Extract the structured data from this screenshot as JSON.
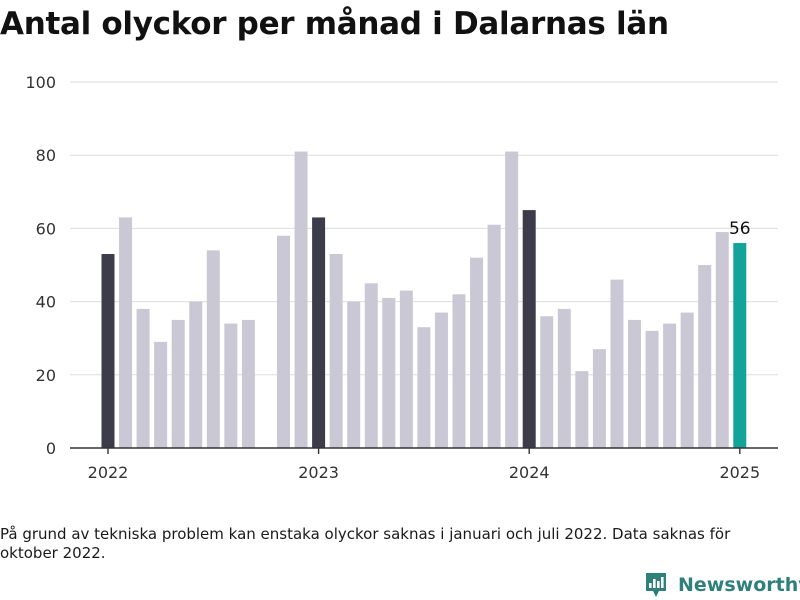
{
  "title": "Antal olyckor per månad i Dalarnas län",
  "footnote": "På grund av tekniska problem kan enstaka olyckor saknas i januari och juli 2022. Data saknas för oktober 2022.",
  "brand": {
    "name": "Newsworthy",
    "logo_icon": "newsworthy-logo-icon"
  },
  "colors": {
    "bar": "#c9c8d4",
    "january": "#3d3c4a",
    "latest": "#12a39a",
    "grid": "#dddddd",
    "axis": "#333333",
    "text": "#333333"
  },
  "chart_data": {
    "type": "bar",
    "title": "Antal olyckor per månad i Dalarnas län",
    "xlabel": "",
    "ylabel": "",
    "ylim": [
      0,
      100
    ],
    "yticks": [
      0,
      20,
      40,
      60,
      80,
      100
    ],
    "xticks": [
      "2022",
      "2023",
      "2024",
      "2025"
    ],
    "grid": true,
    "annotation": {
      "month": "2025-01",
      "label": "56"
    },
    "months": [
      "2022-01",
      "2022-02",
      "2022-03",
      "2022-04",
      "2022-05",
      "2022-06",
      "2022-07",
      "2022-08",
      "2022-09",
      "2022-10",
      "2022-11",
      "2022-12",
      "2023-01",
      "2023-02",
      "2023-03",
      "2023-04",
      "2023-05",
      "2023-06",
      "2023-07",
      "2023-08",
      "2023-09",
      "2023-10",
      "2023-11",
      "2023-12",
      "2024-01",
      "2024-02",
      "2024-03",
      "2024-04",
      "2024-05",
      "2024-06",
      "2024-07",
      "2024-08",
      "2024-09",
      "2024-10",
      "2024-11",
      "2024-12",
      "2025-01"
    ],
    "values": [
      53,
      63,
      38,
      29,
      35,
      40,
      54,
      34,
      35,
      null,
      58,
      81,
      63,
      53,
      40,
      45,
      41,
      43,
      33,
      37,
      42,
      52,
      61,
      81,
      65,
      36,
      38,
      21,
      27,
      46,
      35,
      32,
      34,
      37,
      50,
      59,
      56
    ]
  }
}
